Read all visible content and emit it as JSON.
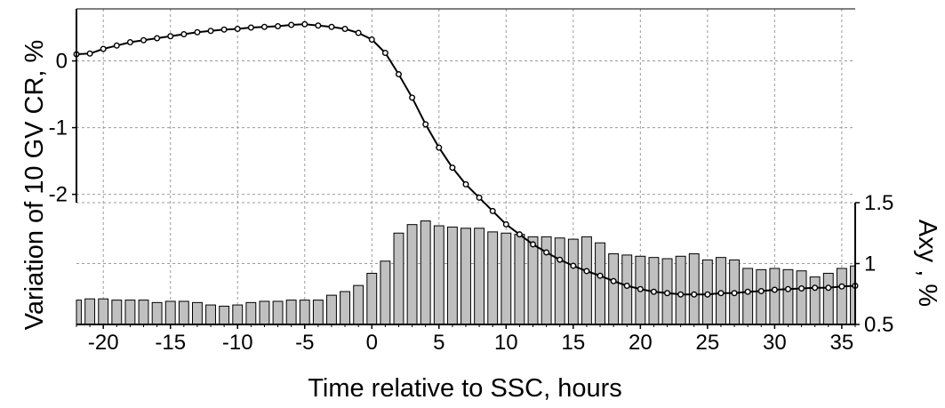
{
  "chart_data": {
    "type": "bar+line",
    "title": "",
    "xlabel": "Time relative to SSC, hours",
    "ylabel_left": "Variation of 10 GV CR, %",
    "ylabel_right": "Axy , %",
    "xlim": [
      -22,
      36
    ],
    "xticks": [
      -20,
      -15,
      -10,
      -5,
      0,
      5,
      10,
      15,
      20,
      25,
      30,
      35
    ],
    "xtick_labels": [
      "-20",
      "-15",
      "-10",
      "-5",
      "0",
      "5",
      "10",
      "15",
      "20",
      "25",
      "30",
      "35"
    ],
    "ylim_left": [
      -3.95,
      0.78
    ],
    "yticks_left": [
      0,
      -1,
      -2
    ],
    "ytick_labels_left": [
      "0",
      "-1",
      "-2"
    ],
    "ylim_right": [
      0.5,
      1.5
    ],
    "yticks_right": [
      0.5,
      1,
      1.5
    ],
    "ytick_labels_right": [
      "0.5",
      "1",
      "1.5"
    ],
    "grid": true,
    "series": [
      {
        "kind": "line",
        "axis": "left",
        "marker": "open-circle",
        "x": [
          -22,
          -21,
          -20,
          -19,
          -18,
          -17,
          -16,
          -15,
          -14,
          -13,
          -12,
          -11,
          -10,
          -9,
          -8,
          -7,
          -6,
          -5,
          -4,
          -3,
          -2,
          -1,
          0,
          1,
          2,
          3,
          4,
          5,
          6,
          7,
          8,
          9,
          10,
          11,
          12,
          13,
          14,
          15,
          16,
          17,
          18,
          19,
          20,
          21,
          22,
          23,
          24,
          25,
          26,
          27,
          28,
          29,
          30,
          31,
          32,
          33,
          34,
          35,
          36
        ],
        "values": [
          0.1,
          0.11,
          0.18,
          0.23,
          0.28,
          0.31,
          0.34,
          0.37,
          0.4,
          0.43,
          0.45,
          0.47,
          0.48,
          0.5,
          0.51,
          0.52,
          0.54,
          0.55,
          0.53,
          0.51,
          0.48,
          0.42,
          0.32,
          0.12,
          -0.2,
          -0.55,
          -0.95,
          -1.3,
          -1.6,
          -1.85,
          -2.05,
          -2.25,
          -2.45,
          -2.6,
          -2.75,
          -2.87,
          -2.98,
          -3.07,
          -3.15,
          -3.22,
          -3.3,
          -3.37,
          -3.42,
          -3.46,
          -3.48,
          -3.5,
          -3.5,
          -3.5,
          -3.48,
          -3.48,
          -3.46,
          -3.45,
          -3.43,
          -3.42,
          -3.41,
          -3.4,
          -3.4,
          -3.38,
          -3.37
        ]
      },
      {
        "kind": "bar",
        "axis": "right",
        "x": [
          -22,
          -21,
          -20,
          -19,
          -18,
          -17,
          -16,
          -15,
          -14,
          -13,
          -12,
          -11,
          -10,
          -9,
          -8,
          -7,
          -6,
          -5,
          -4,
          -3,
          -2,
          -1,
          0,
          1,
          2,
          3,
          4,
          5,
          6,
          7,
          8,
          9,
          10,
          11,
          12,
          13,
          14,
          15,
          16,
          17,
          18,
          19,
          20,
          21,
          22,
          23,
          24,
          25,
          26,
          27,
          28,
          29,
          30,
          31,
          32,
          33,
          34,
          35,
          36
        ],
        "values": [
          0.7,
          0.71,
          0.71,
          0.7,
          0.7,
          0.7,
          0.68,
          0.69,
          0.69,
          0.68,
          0.66,
          0.65,
          0.66,
          0.68,
          0.69,
          0.69,
          0.7,
          0.7,
          0.7,
          0.74,
          0.77,
          0.82,
          0.92,
          1.02,
          1.25,
          1.32,
          1.35,
          1.31,
          1.3,
          1.29,
          1.29,
          1.26,
          1.25,
          1.24,
          1.22,
          1.22,
          1.21,
          1.2,
          1.22,
          1.17,
          1.08,
          1.07,
          1.06,
          1.05,
          1.04,
          1.06,
          1.08,
          1.03,
          1.05,
          1.03,
          0.96,
          0.95,
          0.96,
          0.95,
          0.94,
          0.89,
          0.92,
          0.96,
          0.98
        ]
      }
    ]
  }
}
